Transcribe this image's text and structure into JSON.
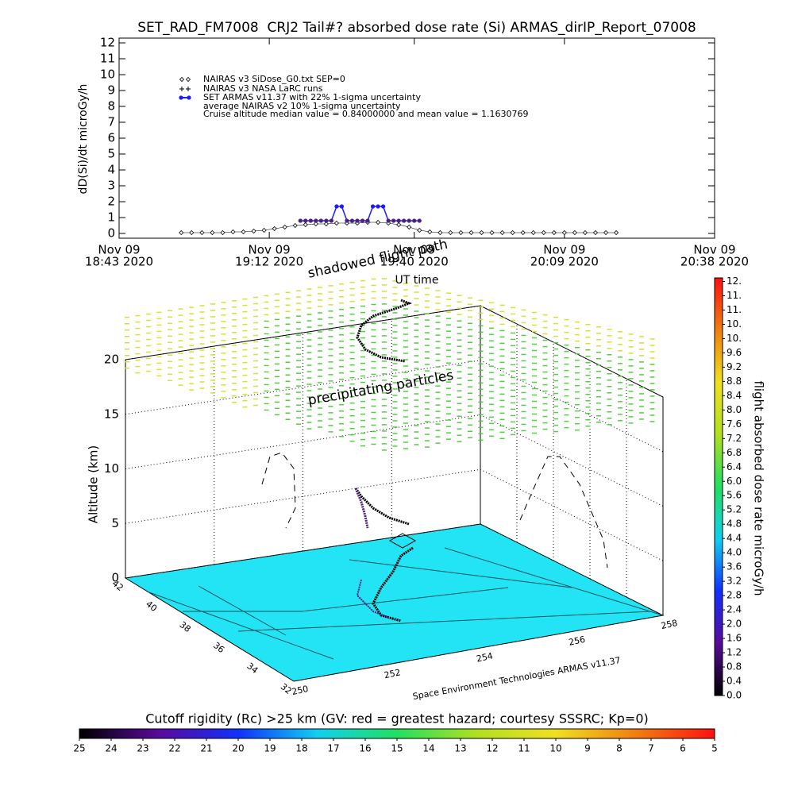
{
  "chart_data": [
    {
      "type": "line",
      "title": "SET_RAD_FM7008  CRJ2 Tail#? absorbed dose rate (Si) ARMAS_dirIP_Report_07008",
      "y_label": "dD(Si)/dt microGy/h",
      "x_label": "UT time",
      "xlim": [
        "2020-11-09T18:43",
        "2020-11-09T20:38"
      ],
      "xticks": [
        {
          "value": "2020-11-09T18:43",
          "label": [
            "Nov 09",
            "18:43 2020"
          ]
        },
        {
          "value": "2020-11-09T19:12",
          "label": [
            "Nov 09",
            "19:12 2020"
          ]
        },
        {
          "value": "2020-11-09T19:40",
          "label": [
            "Nov 09",
            "19:40 2020"
          ]
        },
        {
          "value": "2020-11-09T20:09",
          "label": [
            "Nov 09",
            "20:09 2020"
          ]
        },
        {
          "value": "2020-11-09T20:38",
          "label": [
            "Nov 09",
            "20:38 2020"
          ]
        }
      ],
      "ylim": [
        -0.3,
        12.3
      ],
      "yticks": [
        0,
        1,
        2,
        3,
        4,
        5,
        6,
        7,
        8,
        9,
        10,
        11,
        12
      ],
      "series": [
        {
          "name": "NAIRAS v3 SiDose_G0.txt SEP=0",
          "color": "#000000",
          "marker": "diamond",
          "x": [
            "2020-11-09T18:55",
            "2020-11-09T18:57",
            "2020-11-09T18:59",
            "2020-11-09T19:01",
            "2020-11-09T19:03",
            "2020-11-09T19:05",
            "2020-11-09T19:07",
            "2020-11-09T19:09",
            "2020-11-09T19:11",
            "2020-11-09T19:13",
            "2020-11-09T19:15",
            "2020-11-09T19:17",
            "2020-11-09T19:19",
            "2020-11-09T19:21",
            "2020-11-09T19:23",
            "2020-11-09T19:25",
            "2020-11-09T19:27",
            "2020-11-09T19:29",
            "2020-11-09T19:31",
            "2020-11-09T19:33",
            "2020-11-09T19:35",
            "2020-11-09T19:37",
            "2020-11-09T19:39",
            "2020-11-09T19:41",
            "2020-11-09T19:43",
            "2020-11-09T19:45",
            "2020-11-09T19:47",
            "2020-11-09T19:49",
            "2020-11-09T19:51",
            "2020-11-09T19:53",
            "2020-11-09T19:55",
            "2020-11-09T19:57",
            "2020-11-09T19:59",
            "2020-11-09T20:01",
            "2020-11-09T20:03",
            "2020-11-09T20:05",
            "2020-11-09T20:07",
            "2020-11-09T20:09",
            "2020-11-09T20:11",
            "2020-11-09T20:13",
            "2020-11-09T20:15",
            "2020-11-09T20:17",
            "2020-11-09T20:19"
          ],
          "values": [
            0.05,
            0.05,
            0.05,
            0.05,
            0.05,
            0.1,
            0.1,
            0.15,
            0.2,
            0.3,
            0.4,
            0.5,
            0.55,
            0.6,
            0.6,
            0.65,
            0.65,
            0.65,
            0.7,
            0.7,
            0.65,
            0.55,
            0.4,
            0.2,
            0.1,
            0.05,
            0.05,
            0.05,
            0.05,
            0.05,
            0.05,
            0.05,
            0.05,
            0.05,
            0.05,
            0.05,
            0.05,
            0.05,
            0.05,
            0.05,
            0.05,
            0.05,
            0.05
          ]
        },
        {
          "name": "SET ARMAS v11.37 with 22% 1-sigma uncertainty",
          "color": "#1a1aff",
          "marker_color": "#4a2080",
          "marker": "dot",
          "x": [
            "2020-11-09T19:18",
            "2020-11-09T19:19",
            "2020-11-09T19:20",
            "2020-11-09T19:21",
            "2020-11-09T19:22",
            "2020-11-09T19:23",
            "2020-11-09T19:24",
            "2020-11-09T19:25",
            "2020-11-09T19:26",
            "2020-11-09T19:27",
            "2020-11-09T19:28",
            "2020-11-09T19:29",
            "2020-11-09T19:30",
            "2020-11-09T19:31",
            "2020-11-09T19:32",
            "2020-11-09T19:33",
            "2020-11-09T19:34",
            "2020-11-09T19:35",
            "2020-11-09T19:36",
            "2020-11-09T19:37",
            "2020-11-09T19:38",
            "2020-11-09T19:39",
            "2020-11-09T19:40",
            "2020-11-09T19:41"
          ],
          "values": [
            0.8,
            0.8,
            0.8,
            0.8,
            0.8,
            0.8,
            0.8,
            1.7,
            1.7,
            0.8,
            0.8,
            0.8,
            0.8,
            0.8,
            1.7,
            1.7,
            1.7,
            0.8,
            0.8,
            0.8,
            0.8,
            0.8,
            0.8,
            0.8
          ]
        }
      ],
      "legend_notes": [
        "NAIRAS v3 NASA LaRC runs",
        "average NAIRAS v2 10% 1-sigma uncertainty",
        "Cruise altitude median value = 0.84000000 and mean value = 1.1630769"
      ]
    },
    {
      "type": "scatter3d",
      "z_label": "Altitude (km)",
      "zlim": [
        0,
        20
      ],
      "zticks": [
        0,
        5,
        10,
        15,
        20
      ],
      "latlim": [
        32,
        42
      ],
      "latticks": [
        42,
        40,
        38,
        36,
        34,
        32
      ],
      "lonlim": [
        250,
        258
      ],
      "lonticks": [
        250,
        252,
        254,
        256,
        258
      ],
      "floor_color": "#22e4f4",
      "annotations": [
        "shadowed flight path",
        "precipitating particles",
        "Space Environment Technologies ARMAS v11.37"
      ]
    },
    {
      "type": "colorbar",
      "label": "flight absorbed dose rate microGy/h",
      "colormap": [
        "#000000",
        "#5a0a9a",
        "#1030ff",
        "#10d0f0",
        "#20e060",
        "#b0e020",
        "#f0e020",
        "#f08010",
        "#ff1010"
      ],
      "ylim": [
        0,
        11.7
      ],
      "yticks": [
        {
          "value": 0,
          "label": "0.0"
        },
        0.4,
        0.8,
        1.2,
        1.6,
        {
          "value": 2,
          "label": "2.0"
        },
        2.4,
        2.8,
        3.2,
        3.6,
        {
          "value": 4,
          "label": "4.0"
        },
        4.4,
        4.8,
        5.2,
        5.6,
        {
          "value": 6,
          "label": "6.0"
        },
        6.4,
        6.8,
        7.2,
        7.6,
        {
          "value": 8,
          "label": "8.0"
        },
        8.4,
        8.8,
        9.2,
        9.6,
        {
          "value": 10,
          "label": "10."
        },
        {
          "value": 10.4,
          "label": "10."
        },
        {
          "value": 10.8,
          "label": "11."
        },
        {
          "value": 11.2,
          "label": "11."
        },
        {
          "value": 11.6,
          "label": "12."
        }
      ]
    },
    {
      "type": "colorbar",
      "label": "Cutoff rigidity (Rc) >25 km (GV: red = greatest hazard; courtesy SSSRC; Kp=0)",
      "colormap": [
        "#000000",
        "#5a0a9a",
        "#1030ff",
        "#10d0f0",
        "#20e060",
        "#b0e020",
        "#f0e020",
        "#f08010",
        "#ff1010"
      ],
      "xlim": [
        25,
        5
      ],
      "xticks": [
        25,
        24,
        23,
        22,
        21,
        20,
        19,
        18,
        17,
        16,
        15,
        14,
        13,
        12,
        11,
        10,
        9,
        8,
        7,
        6,
        5
      ]
    }
  ]
}
